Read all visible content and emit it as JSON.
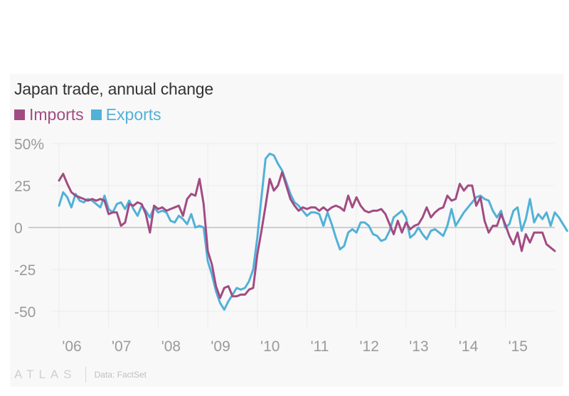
{
  "chart_data": {
    "type": "line",
    "title": "Japan trade, annual change",
    "xlabel": "",
    "ylabel": "",
    "x_start": "2006-01",
    "x_end": "2015-09",
    "frequency": "monthly",
    "x_tick_labels": [
      "'06",
      "'07",
      "'08",
      "'09",
      "'10",
      "'11",
      "'12",
      "'13",
      "'14",
      "'15"
    ],
    "y_tick_labels": [
      "50%",
      "25",
      "0",
      "-25",
      "-50"
    ],
    "y_ticks": [
      50,
      25,
      0,
      -25,
      -50
    ],
    "ylim": [
      -55,
      55
    ],
    "grid": true,
    "legend_position": "top-left",
    "series": [
      {
        "name": "Imports",
        "color": "#a24b82",
        "values": [
          28,
          32,
          26,
          21,
          19,
          18,
          17,
          16,
          17,
          16,
          17,
          16,
          8,
          9,
          9,
          1,
          3,
          14,
          13,
          15,
          14,
          8,
          -3,
          13,
          11,
          12,
          10,
          11,
          12,
          13,
          7,
          17,
          20,
          19,
          29,
          14,
          -14,
          -22,
          -35,
          -42,
          -36,
          -35,
          -41,
          -41,
          -40,
          -40,
          -37,
          -36,
          -16,
          -2,
          13,
          29,
          22,
          25,
          33,
          25,
          17,
          13,
          10,
          12,
          11,
          12,
          12,
          10,
          12,
          10,
          12,
          13,
          12,
          10,
          19,
          12,
          18,
          13,
          10,
          9,
          10,
          10,
          11,
          8,
          2,
          -4,
          4,
          -3,
          3,
          -1,
          1,
          2,
          6,
          12,
          6,
          9,
          11,
          12,
          19,
          16,
          17,
          26,
          22,
          25,
          25,
          13,
          18,
          4,
          -3,
          1,
          1,
          8,
          2,
          -5,
          -10,
          -3,
          -14,
          -4,
          -9,
          -3,
          -3,
          -3,
          -10,
          -12,
          -14
        ]
      },
      {
        "name": "Exports",
        "color": "#51b1d8",
        "values": [
          13,
          21,
          18,
          12,
          20,
          16,
          15,
          17,
          16,
          14,
          12,
          19,
          11,
          9,
          14,
          15,
          11,
          16,
          11,
          7,
          13,
          10,
          6,
          12,
          9,
          10,
          9,
          4,
          3,
          7,
          5,
          2,
          8,
          0,
          1,
          0,
          -20,
          -28,
          -38,
          -45,
          -49,
          -44,
          -40,
          -36,
          -37,
          -36,
          -32,
          -25,
          -6,
          18,
          41,
          44,
          43,
          38,
          34,
          27,
          20,
          15,
          13,
          10,
          7,
          9,
          9,
          8,
          1,
          9,
          2,
          -6,
          -13,
          -11,
          -3,
          -1,
          -3,
          3,
          3,
          1,
          -4,
          -5,
          -8,
          -7,
          -2,
          6,
          8,
          10,
          6,
          -6,
          -4,
          0,
          -4,
          -7,
          -2,
          -1,
          -3,
          -5,
          1,
          11,
          1,
          5,
          9,
          12,
          15,
          18,
          19,
          17,
          16,
          10,
          6,
          10,
          0,
          2,
          10,
          12,
          -2,
          5,
          17,
          3,
          8,
          5,
          9,
          1,
          9,
          6,
          2,
          -2
        ]
      }
    ]
  },
  "legend": {
    "imports_label": "Imports",
    "exports_label": "Exports"
  },
  "footer": {
    "brand": "ATLAS",
    "source": "Data: FactSet"
  }
}
